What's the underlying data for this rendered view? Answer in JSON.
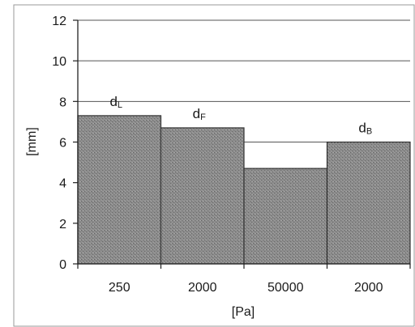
{
  "chart_data": {
    "type": "bar",
    "categories": [
      "250",
      "2000",
      "50000",
      "2000"
    ],
    "values": [
      7.3,
      6.7,
      4.7,
      6.0
    ],
    "bar_labels": [
      {
        "main": "d",
        "sub": "L"
      },
      {
        "main": "d",
        "sub": "F"
      },
      {
        "main": "",
        "sub": ""
      },
      {
        "main": "d",
        "sub": "B"
      }
    ],
    "title": "",
    "xlabel": "[Pa]",
    "ylabel": "[mm]",
    "ylim": [
      0,
      12
    ],
    "yticks": [
      "0",
      "2",
      "4",
      "6",
      "8",
      "10",
      "12"
    ],
    "grid": true,
    "bar_fill": "#8f8f8f",
    "bar_stroke": "#333333"
  }
}
